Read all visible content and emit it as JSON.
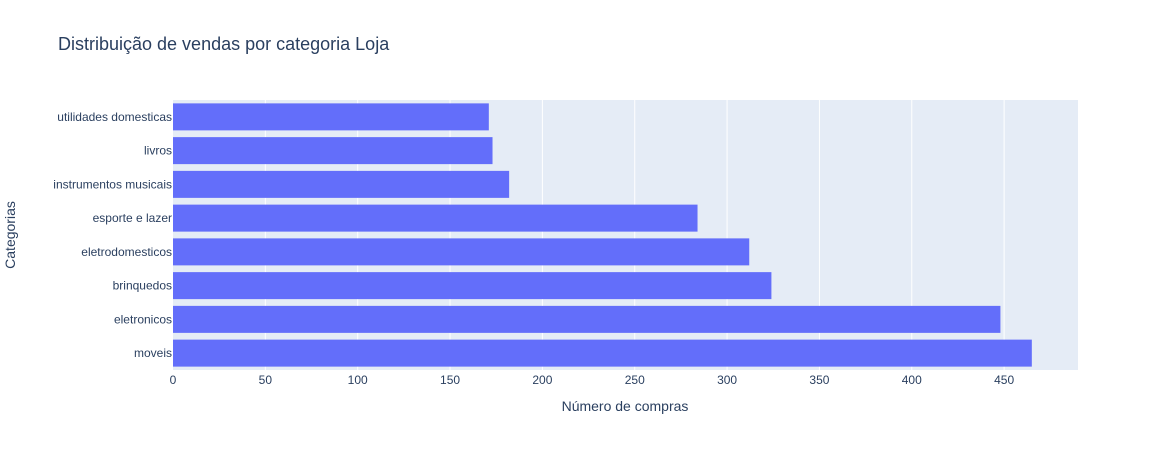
{
  "chart_data": {
    "type": "bar",
    "orientation": "horizontal",
    "title": "Distribuição de vendas por categoria Loja",
    "xlabel": "Número de compras",
    "ylabel": "Categorias",
    "categories": [
      "utilidades domesticas",
      "livros",
      "instrumentos musicais",
      "esporte e lazer",
      "eletrodomesticos",
      "brinquedos",
      "eletronicos",
      "moveis"
    ],
    "values": [
      171,
      173,
      182,
      284,
      312,
      324,
      448,
      465
    ],
    "xlim": [
      0,
      490
    ],
    "xticks": [
      0,
      50,
      100,
      150,
      200,
      250,
      300,
      350,
      400,
      450
    ],
    "grid": true,
    "bar_color": "#636efa",
    "plot_background": "#e5ecf6"
  }
}
